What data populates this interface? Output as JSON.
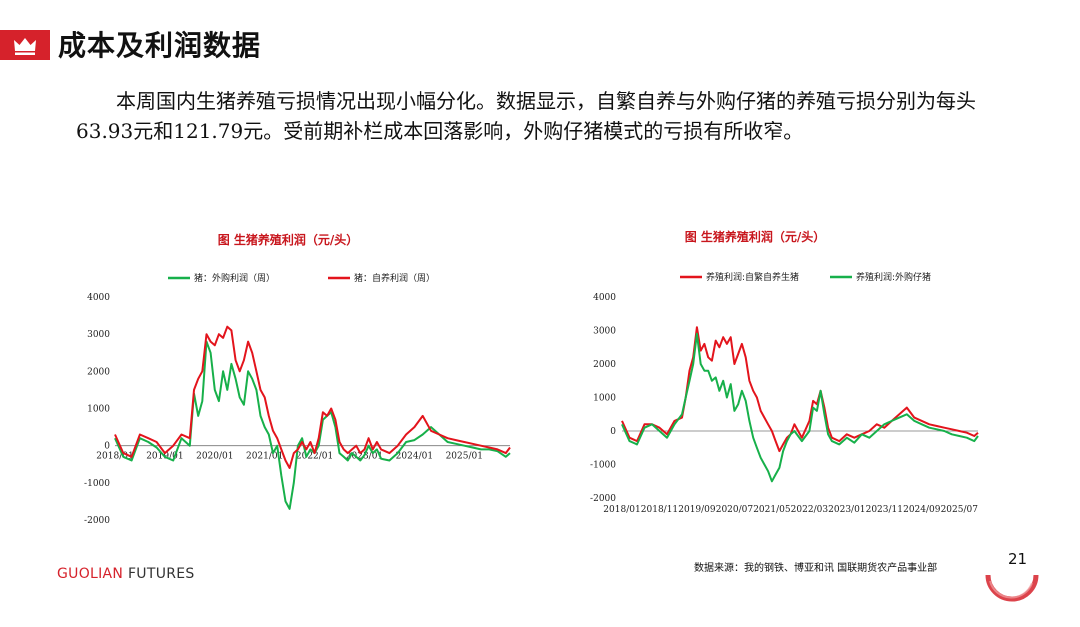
{
  "header": {
    "title": "成本及利润数据"
  },
  "paragraph": "本周国内生猪养殖亏损情况出现小幅分化。数据显示，自繁自养与外购仔猪的养殖亏损分别为每头63.93元和121.79元。受前期补栏成本回落影响，外购仔猪模式的亏损有所收窄。",
  "footer": {
    "logo_main": "GUOLIAN",
    "logo_rest": " FUTURES",
    "source": "数据来源：我的钢铁、博亚和讯 国联期货农产品事业部",
    "page_number": "21"
  },
  "colors": {
    "red": "#e3141c",
    "green": "#17b04a",
    "brand": "#d6222b"
  },
  "chart_data": [
    {
      "type": "line",
      "title": "图   生猪养殖利润（元/头）",
      "xticks": [
        "2018/01",
        "2019/01",
        "2020/01",
        "2021/01",
        "2022/01",
        "2023/01",
        "2024/01",
        "2025/01"
      ],
      "xtick_t": [
        0,
        12,
        24,
        36,
        48,
        60,
        72,
        84
      ],
      "yticks": [
        4000,
        3000,
        2000,
        1000,
        0,
        -1000,
        -2000
      ],
      "ylim": [
        -2000,
        4000
      ],
      "xlim": [
        0,
        95
      ],
      "legend_position": "top",
      "series": [
        {
          "name": "猪：外购利润（周）",
          "color": "#17b04a",
          "x": [
            0,
            2,
            4,
            6,
            8,
            10,
            12,
            14,
            16,
            18,
            19,
            20,
            21,
            22,
            23,
            24,
            25,
            26,
            27,
            28,
            29,
            30,
            31,
            32,
            33,
            34,
            35,
            36,
            37,
            38,
            39,
            40,
            41,
            42,
            43,
            44,
            45,
            46,
            47,
            48,
            49,
            50,
            51,
            52,
            53,
            54,
            55,
            56,
            57,
            58,
            59,
            60,
            61,
            62,
            63,
            64,
            66,
            68,
            70,
            72,
            74,
            76,
            78,
            80,
            82,
            84,
            86,
            88,
            90,
            92,
            94,
            95
          ],
          "y": [
            200,
            -300,
            -400,
            200,
            100,
            -50,
            -300,
            -400,
            200,
            0,
            1400,
            800,
            1200,
            2800,
            2500,
            1500,
            1200,
            2000,
            1500,
            2200,
            1800,
            1300,
            1100,
            2000,
            1800,
            1500,
            800,
            500,
            300,
            -200,
            0,
            -800,
            -1500,
            -1700,
            -1000,
            0,
            200,
            -300,
            -100,
            -200,
            0,
            700,
            800,
            900,
            500,
            -200,
            -300,
            -400,
            -200,
            -300,
            -400,
            -250,
            0,
            -200,
            -100,
            -350,
            -400,
            -200,
            100,
            150,
            300,
            500,
            300,
            100,
            50,
            0,
            -50,
            -100,
            -100,
            -150,
            -300,
            -200
          ]
        },
        {
          "name": "猪：自养利润（周）",
          "color": "#e3141c",
          "x": [
            0,
            2,
            4,
            6,
            8,
            10,
            12,
            14,
            16,
            18,
            19,
            20,
            21,
            22,
            23,
            24,
            25,
            26,
            27,
            28,
            29,
            30,
            31,
            32,
            33,
            34,
            35,
            36,
            37,
            38,
            39,
            40,
            41,
            42,
            43,
            44,
            45,
            46,
            47,
            48,
            49,
            50,
            51,
            52,
            53,
            54,
            55,
            56,
            57,
            58,
            59,
            60,
            61,
            62,
            63,
            64,
            66,
            68,
            70,
            72,
            74,
            76,
            78,
            80,
            82,
            84,
            86,
            88,
            90,
            92,
            94,
            95
          ],
          "y": [
            300,
            -200,
            -300,
            300,
            200,
            100,
            -200,
            0,
            300,
            200,
            1500,
            1800,
            2000,
            3000,
            2800,
            2700,
            3000,
            2900,
            3200,
            3100,
            2300,
            2000,
            2300,
            2800,
            2500,
            2000,
            1500,
            1300,
            800,
            400,
            200,
            -100,
            -400,
            -600,
            -200,
            -100,
            100,
            -100,
            100,
            -200,
            200,
            900,
            800,
            1000,
            700,
            100,
            -100,
            -200,
            -100,
            0,
            -200,
            -100,
            200,
            -100,
            100,
            -100,
            -200,
            0,
            300,
            500,
            800,
            400,
            300,
            200,
            150,
            100,
            50,
            0,
            -50,
            -100,
            -200,
            -50
          ]
        }
      ]
    },
    {
      "type": "line",
      "title": "图   生猪养殖利润（元/头）",
      "xticks": [
        "2018/01",
        "2018/11",
        "2019/09",
        "2020/07",
        "2021/05",
        "2022/03",
        "2023/01",
        "2023/11",
        "2024/09",
        "2025/07"
      ],
      "xtick_t": [
        0,
        10,
        20,
        30,
        40,
        50,
        60,
        70,
        80,
        90
      ],
      "yticks": [
        4000,
        3000,
        2000,
        1000,
        0,
        -1000,
        -2000
      ],
      "ylim": [
        -2000,
        4000
      ],
      "xlim": [
        0,
        95
      ],
      "legend_position": "top",
      "series": [
        {
          "name": "养殖利润:自繁自养生猪",
          "color": "#e3141c",
          "x": [
            0,
            2,
            4,
            6,
            8,
            10,
            12,
            14,
            16,
            17,
            18,
            19,
            20,
            21,
            22,
            23,
            24,
            25,
            26,
            27,
            28,
            29,
            30,
            31,
            32,
            33,
            34,
            35,
            36,
            37,
            38,
            39,
            40,
            41,
            42,
            43,
            44,
            45,
            46,
            48,
            50,
            51,
            52,
            53,
            54,
            55,
            56,
            58,
            60,
            62,
            64,
            66,
            68,
            70,
            72,
            74,
            76,
            78,
            80,
            82,
            84,
            86,
            88,
            90,
            92,
            94,
            95
          ],
          "y": [
            300,
            -200,
            -300,
            200,
            200,
            100,
            -100,
            300,
            400,
            1000,
            1800,
            2200,
            3100,
            2400,
            2600,
            2200,
            2100,
            2700,
            2500,
            2800,
            2600,
            2800,
            2000,
            2300,
            2600,
            2200,
            1500,
            1200,
            1000,
            600,
            400,
            200,
            0,
            -300,
            -600,
            -400,
            -200,
            -100,
            200,
            -200,
            300,
            900,
            800,
            1200,
            700,
            100,
            -200,
            -300,
            -100,
            -200,
            -100,
            0,
            200,
            100,
            300,
            500,
            700,
            400,
            300,
            200,
            150,
            100,
            50,
            0,
            -50,
            -150,
            -50
          ]
        },
        {
          "name": "养殖利润:外购仔猪",
          "color": "#17b04a",
          "x": [
            0,
            2,
            4,
            6,
            8,
            10,
            12,
            14,
            16,
            17,
            18,
            19,
            20,
            21,
            22,
            23,
            24,
            25,
            26,
            27,
            28,
            29,
            30,
            31,
            32,
            33,
            34,
            35,
            36,
            37,
            38,
            39,
            40,
            41,
            42,
            43,
            44,
            45,
            46,
            48,
            50,
            51,
            52,
            53,
            54,
            55,
            56,
            58,
            60,
            62,
            64,
            66,
            68,
            70,
            72,
            74,
            76,
            78,
            80,
            82,
            84,
            86,
            88,
            90,
            92,
            94,
            95
          ],
          "y": [
            200,
            -300,
            -400,
            100,
            200,
            0,
            -200,
            200,
            500,
            1000,
            1500,
            2000,
            2900,
            2000,
            1800,
            1800,
            1500,
            1600,
            1200,
            1500,
            1000,
            1400,
            600,
            800,
            1200,
            900,
            300,
            -200,
            -500,
            -800,
            -1000,
            -1200,
            -1500,
            -1300,
            -1100,
            -600,
            -300,
            -100,
            0,
            -300,
            0,
            700,
            600,
            1200,
            500,
            -100,
            -300,
            -400,
            -200,
            -350,
            -100,
            -200,
            0,
            200,
            300,
            400,
            500,
            300,
            200,
            100,
            50,
            0,
            -100,
            -150,
            -200,
            -300,
            -150
          ]
        }
      ]
    }
  ]
}
